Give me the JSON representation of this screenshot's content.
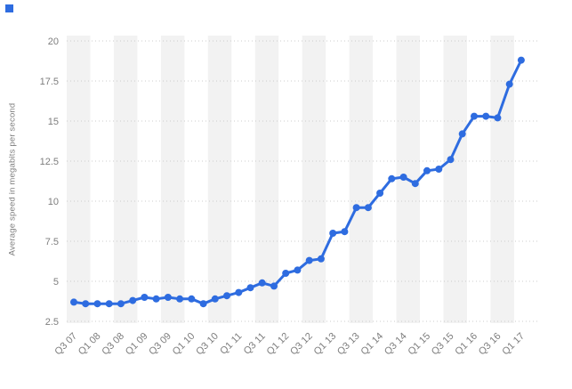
{
  "page": {
    "background": "#ffffff",
    "accent_color": "#2e6ce0"
  },
  "chart_data": {
    "type": "line",
    "title": "",
    "ylabel": "Average speed in megabits per second",
    "xlabel": "",
    "x_categories": [
      "Q3 07",
      "Q4 07",
      "Q1 08",
      "Q2 08",
      "Q3 08",
      "Q4 08",
      "Q1 09",
      "Q2 09",
      "Q3 09",
      "Q4 09",
      "Q1 10",
      "Q2 10",
      "Q3 10",
      "Q4 10",
      "Q1 11",
      "Q2 11",
      "Q3 11",
      "Q4 11",
      "Q1 12",
      "Q2 12",
      "Q3 12",
      "Q4 12",
      "Q1 13",
      "Q2 13",
      "Q3 13",
      "Q4 13",
      "Q1 14",
      "Q2 14",
      "Q3 14",
      "Q4 14",
      "Q1 15",
      "Q2 15",
      "Q3 15",
      "Q4 15",
      "Q1 16",
      "Q2 16",
      "Q3 16",
      "Q4 16",
      "Q1 17"
    ],
    "values": [
      3.7,
      3.6,
      3.6,
      3.6,
      3.6,
      3.8,
      4.0,
      3.9,
      4.0,
      3.9,
      3.9,
      3.6,
      3.9,
      4.1,
      4.3,
      4.6,
      4.9,
      4.7,
      5.5,
      5.7,
      6.3,
      6.4,
      8.0,
      8.1,
      9.6,
      9.6,
      10.5,
      11.4,
      11.5,
      11.1,
      11.9,
      12.0,
      12.6,
      14.2,
      15.3,
      15.3,
      15.2,
      17.3,
      18.8
    ],
    "x_tick_labels": [
      "Q3 07",
      "Q1 08",
      "Q3 08",
      "Q1 09",
      "Q3 09",
      "Q1 10",
      "Q3 10",
      "Q1 11",
      "Q3 11",
      "Q1 12",
      "Q3 12",
      "Q1 13",
      "Q3 13",
      "Q1 14",
      "Q3 14",
      "Q1 15",
      "Q3 15",
      "Q1 16",
      "Q3 16",
      "Q1 17"
    ],
    "y_ticks": [
      "2.5",
      "5",
      "7.5",
      "10",
      "12.5",
      "15",
      "17.5",
      "20"
    ],
    "ylim": [
      2.5,
      20
    ],
    "grid": "horizontal-dotted",
    "legend": "none",
    "background_stripes": true,
    "line_color": "#2e6ce0",
    "point_color": "#2e6ce0",
    "stripe_color": "#f2f2f2",
    "gridline_color": "#cccccc",
    "tick_label_color": "#7d7d7d"
  }
}
